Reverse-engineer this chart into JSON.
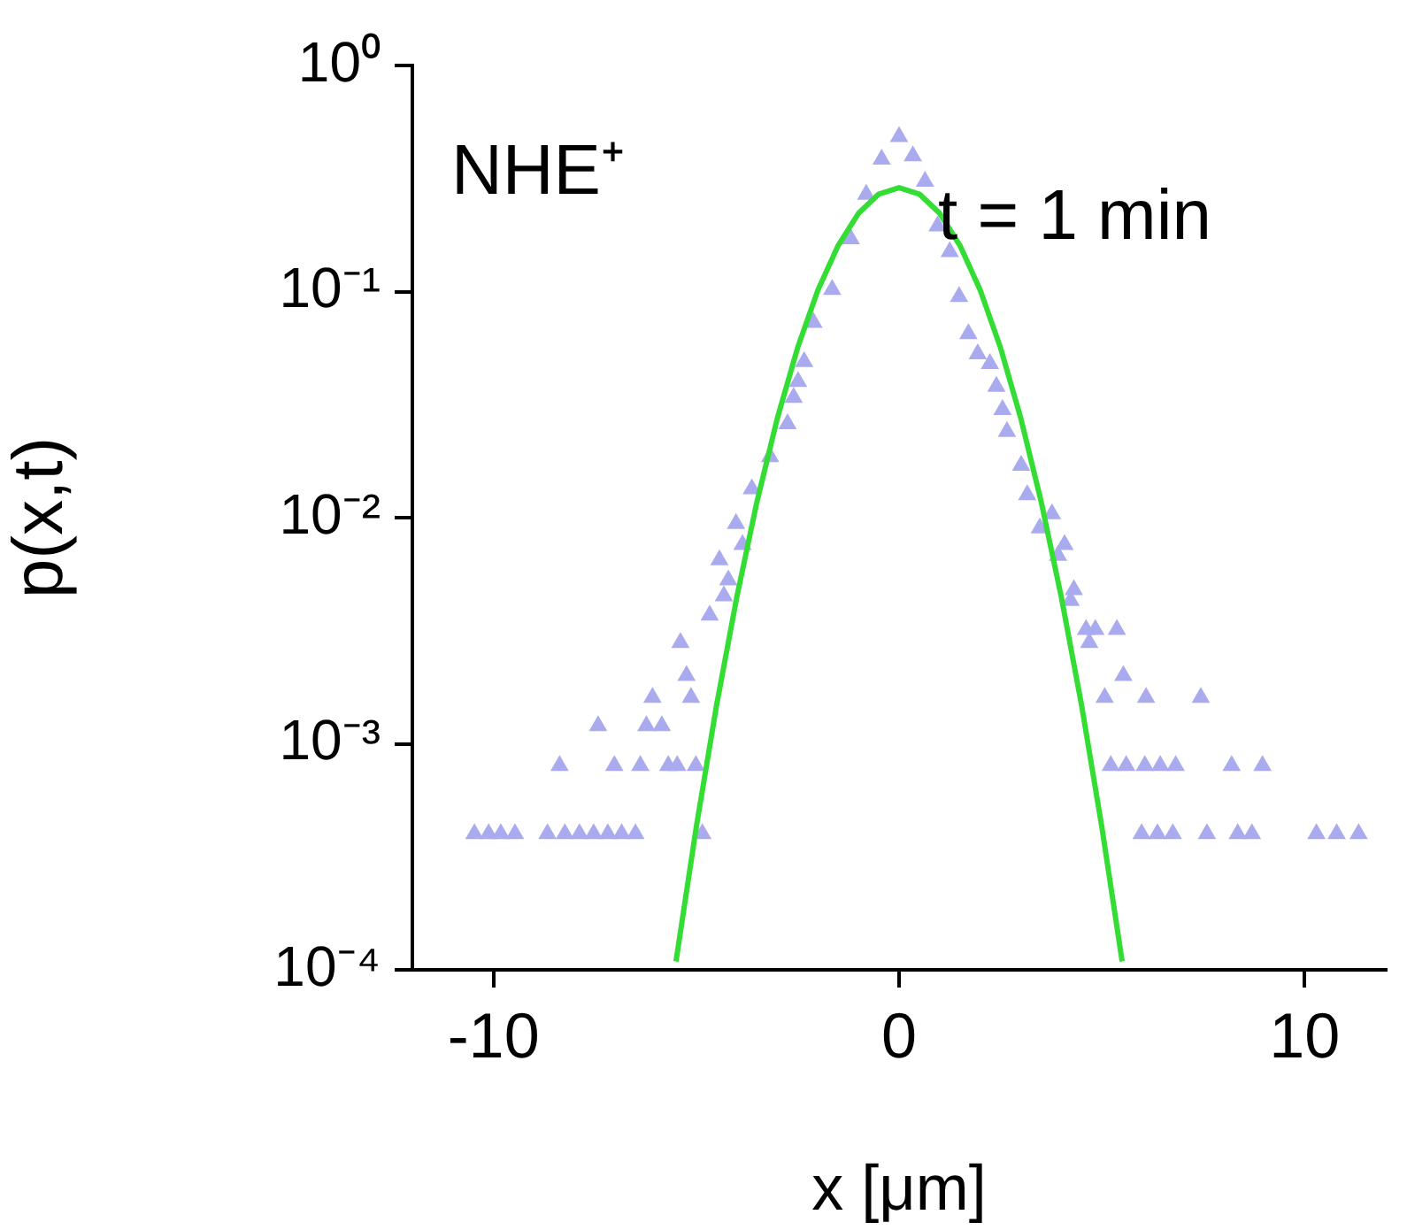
{
  "chart_data": {
    "type": "scatter",
    "xlabel": "x [μm]",
    "ylabel": "p(x,t)",
    "annotations": [
      "NHE⁺",
      "t = 1 min"
    ],
    "log": "y",
    "grid": false,
    "legend": false,
    "marker": "triangle",
    "xlim": [
      -12,
      12
    ],
    "xticks": [
      -10,
      0,
      10
    ],
    "ylim": [
      0.0001,
      1
    ],
    "yticks": [
      {
        "value": 1,
        "label": "10⁰"
      },
      {
        "value": 0.1,
        "label": "10⁻¹"
      },
      {
        "value": 0.01,
        "label": "10⁻²"
      },
      {
        "value": 0.001,
        "label": "10⁻³"
      },
      {
        "value": 0.0001,
        "label": "10⁻⁴"
      }
    ],
    "series": [
      {
        "color": "#aaaaee",
        "x": [
          -10.47,
          -10.12,
          -9.82,
          -9.47,
          -8.67,
          -8.24,
          -7.88,
          -7.53,
          -7.18,
          -6.84,
          -6.5,
          -4.85,
          -8.37,
          -7.02,
          -6.38,
          -5.69,
          -5.47,
          -5.01,
          -7.42,
          -6.23,
          -5.85,
          -6.08,
          -5.13,
          -5.24,
          -5.39,
          -4.67,
          -4.43,
          -4.32,
          -4.21,
          -4.02,
          -3.86,
          -3.63,
          -3.18,
          -2.75,
          -2.6,
          -2.49,
          -2.34,
          -2.11,
          -1.65,
          -1.19,
          -0.81,
          -0.43,
          0,
          0.34,
          0.64,
          0.95,
          1.25,
          1.48,
          1.71,
          1.94,
          2.24,
          2.4,
          2.55,
          2.66,
          3.01,
          3.16,
          3.47,
          3.77,
          3.92,
          4.08,
          4.23,
          4.31,
          4.61,
          4.69,
          4.84,
          5.37,
          5.53,
          5.07,
          6.09,
          7.44,
          5.22,
          5.6,
          6.06,
          6.44,
          6.82,
          8.2,
          8.96,
          5.98,
          6.37,
          6.75,
          7.59,
          8.35,
          8.7,
          10.29,
          10.79,
          11.33
        ],
        "values": [
          0.0004,
          0.0004,
          0.0004,
          0.0004,
          0.0004,
          0.0004,
          0.0004,
          0.0004,
          0.0004,
          0.0004,
          0.0004,
          0.0004,
          0.0008,
          0.0008,
          0.0008,
          0.0008,
          0.0008,
          0.0008,
          0.0012,
          0.0012,
          0.0012,
          0.0016,
          0.0016,
          0.002,
          0.0028,
          0.0037,
          0.0065,
          0.0045,
          0.0053,
          0.0094,
          0.0076,
          0.0134,
          0.0186,
          0.026,
          0.034,
          0.04,
          0.049,
          0.073,
          0.102,
          0.171,
          0.269,
          0.385,
          0.484,
          0.398,
          0.307,
          0.195,
          0.15,
          0.095,
          0.065,
          0.053,
          0.048,
          0.038,
          0.03,
          0.024,
          0.017,
          0.0126,
          0.009,
          0.0104,
          0.0068,
          0.0076,
          0.0043,
          0.0048,
          0.0032,
          0.0028,
          0.0032,
          0.0032,
          0.002,
          0.0016,
          0.0016,
          0.0016,
          0.0008,
          0.0008,
          0.0008,
          0.0008,
          0.0008,
          0.0008,
          0.0008,
          0.0004,
          0.0004,
          0.0004,
          0.0004,
          0.0004,
          0.0004,
          0.0004,
          0.0004,
          0.0004
        ]
      },
      {
        "type": "line",
        "color": "#33dd33",
        "marker": "none",
        "line_style": "solid",
        "x": [
          -5.5,
          -5,
          -4.5,
          -4,
          -3.5,
          -3,
          -2.5,
          -2,
          -1.5,
          -1,
          -0.5,
          0,
          0.5,
          1,
          1.5,
          2,
          2.5,
          3,
          3.5,
          4,
          4.5,
          5,
          5.5
        ],
        "values": [
          0.000109,
          0.000428,
          0.00148,
          0.00446,
          0.01185,
          0.0276,
          0.0565,
          0.1016,
          0.16,
          0.222,
          0.27,
          0.288,
          0.27,
          0.222,
          0.16,
          0.1016,
          0.0565,
          0.0276,
          0.01185,
          0.00446,
          0.00148,
          0.000428,
          0.000109
        ]
      }
    ]
  }
}
